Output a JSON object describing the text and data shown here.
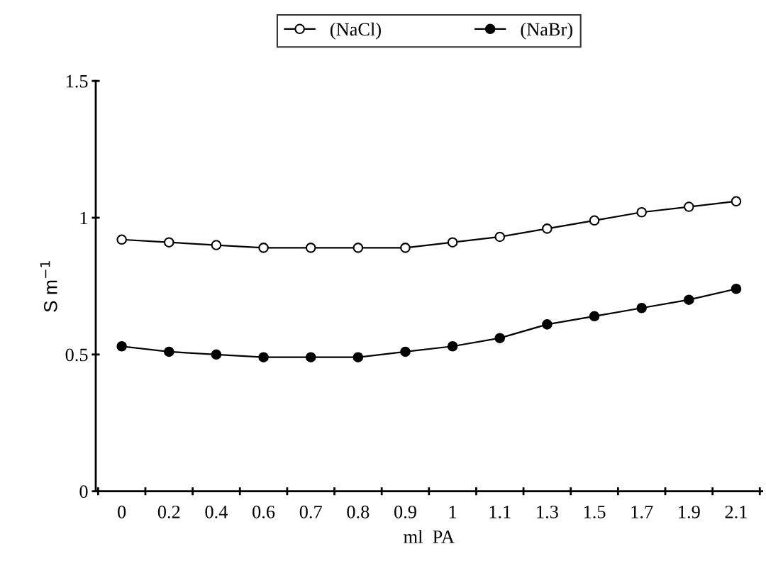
{
  "chart_data": {
    "type": "line",
    "xlabel": "ml  PA",
    "ylabel": "S m$^{−1}$",
    "categories": [
      "0",
      "0.2",
      "0.4",
      "0.6",
      "0.7",
      "0.8",
      "0.9",
      "1",
      "1.1",
      "1.3",
      "1.5",
      "1.7",
      "1.9",
      "2.1"
    ],
    "series": [
      {
        "name": "(NaCl)",
        "color": "#ffffff",
        "values": [
          0.92,
          0.91,
          0.9,
          0.89,
          0.89,
          0.89,
          0.89,
          0.91,
          0.93,
          0.96,
          0.99,
          1.02,
          1.04,
          1.06
        ]
      },
      {
        "name": "(NaBr)",
        "color": "#000000",
        "values": [
          0.53,
          0.51,
          0.5,
          0.49,
          0.49,
          0.49,
          0.51,
          0.53,
          0.56,
          0.61,
          0.64,
          0.67,
          0.7,
          0.74
        ]
      }
    ],
    "ylim": [
      0,
      1.5
    ],
    "yticks": [
      0,
      0.5,
      1,
      1.5
    ],
    "grid": false,
    "legend": "top",
    "marker": "circle",
    "line_style": "solid"
  }
}
